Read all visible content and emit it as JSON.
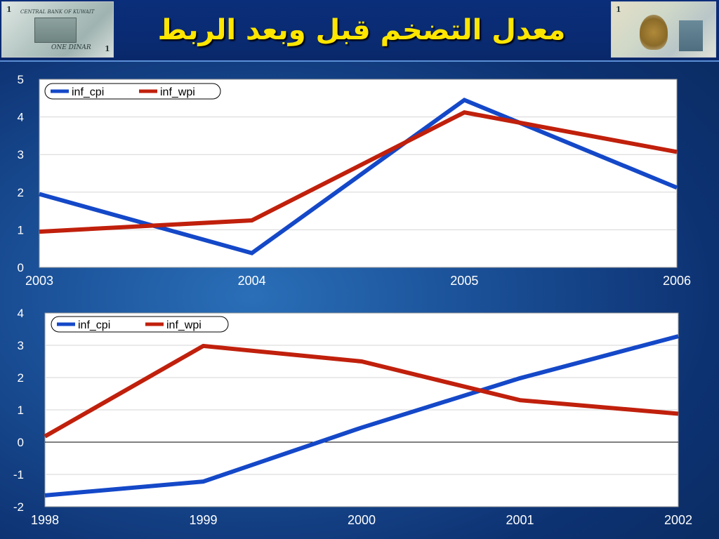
{
  "slide": {
    "title": "معدل التضخم قبل وبعد الربط",
    "banknote_left": {
      "numeral": "1",
      "bank_name": "CENTRAL BANK OF KUWAIT",
      "denomination": "ONE DINAR"
    },
    "banknote_right": {
      "numeral": "1"
    }
  },
  "colors": {
    "inf_cpi": "#1448c8",
    "inf_wpi": "#c0200c",
    "title": "#ffe600"
  },
  "chart_data": [
    {
      "type": "line",
      "x": [
        "2003",
        "2004",
        "2005",
        "2006"
      ],
      "ylim": [
        0,
        5
      ],
      "yticks": [
        "0",
        "1",
        "2",
        "3",
        "4",
        "5"
      ],
      "grid": true,
      "legend": "top-left",
      "series": [
        {
          "name": "inf_cpi",
          "values": [
            1.95,
            0.38,
            4.45,
            2.12
          ]
        },
        {
          "name": "inf_wpi",
          "values": [
            0.95,
            1.25,
            4.12,
            3.07
          ]
        }
      ]
    },
    {
      "type": "line",
      "x": [
        "1998",
        "1999",
        "2000",
        "2001",
        "2002"
      ],
      "ylim": [
        -2,
        4
      ],
      "yticks": [
        "-2",
        "-1",
        "0",
        "1",
        "2",
        "3",
        "4"
      ],
      "grid": true,
      "legend": "top-left",
      "series": [
        {
          "name": "inf_cpi",
          "values": [
            -1.65,
            -1.22,
            0.45,
            1.98,
            3.28
          ]
        },
        {
          "name": "inf_wpi",
          "values": [
            0.18,
            2.98,
            2.5,
            1.3,
            0.88
          ]
        }
      ]
    }
  ]
}
